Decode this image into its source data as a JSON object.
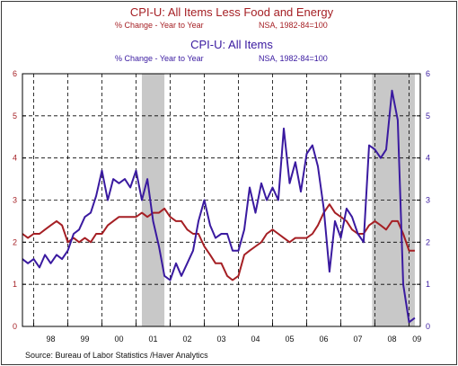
{
  "chart_data": {
    "type": "line",
    "titles": [
      {
        "title": "CPI-U: All Items Less Food and Energy",
        "subtitle_left": "% Change - Year to Year",
        "subtitle_right": "NSA, 1982-84=100",
        "color": "#a51f24"
      },
      {
        "title": "CPI-U: All Items",
        "subtitle_left": "% Change - Year to Year",
        "subtitle_right": "NSA, 1982-84=100",
        "color": "#3a1aa0"
      }
    ],
    "source": "Source:  Bureau of Labor Statistics /Haver Analytics",
    "x_range": [
      1997.67,
      2009.33
    ],
    "x_tick_labels": [
      "98",
      "99",
      "00",
      "01",
      "02",
      "03",
      "04",
      "05",
      "06",
      "07",
      "08",
      "09"
    ],
    "x_tick_years": [
      1998,
      1999,
      2000,
      2001,
      2002,
      2003,
      2004,
      2005,
      2006,
      2007,
      2008,
      2009
    ],
    "y_range": [
      0,
      6
    ],
    "y_ticks_left": [
      "0",
      "1",
      "2",
      "3",
      "4",
      "5",
      "6"
    ],
    "y_ticks_right": [
      "0",
      "1",
      "2",
      "3",
      "4",
      "5",
      "6"
    ],
    "grid": "dashed",
    "recessions": [
      [
        2001.17,
        2001.83
      ],
      [
        2007.92,
        2009.17
      ]
    ],
    "series": [
      {
        "name": "CPI-U: All Items Less Food and Energy",
        "color": "#a51f24",
        "x": [
          1997.67,
          1997.83,
          1998.0,
          1998.17,
          1998.33,
          1998.5,
          1998.67,
          1998.83,
          1999.0,
          1999.17,
          1999.33,
          1999.5,
          1999.67,
          1999.83,
          2000.0,
          2000.17,
          2000.33,
          2000.5,
          2000.67,
          2000.83,
          2001.0,
          2001.17,
          2001.33,
          2001.5,
          2001.67,
          2001.83,
          2002.0,
          2002.17,
          2002.33,
          2002.5,
          2002.67,
          2002.83,
          2003.0,
          2003.17,
          2003.33,
          2003.5,
          2003.67,
          2003.83,
          2004.0,
          2004.17,
          2004.33,
          2004.5,
          2004.67,
          2004.83,
          2005.0,
          2005.17,
          2005.33,
          2005.5,
          2005.67,
          2005.83,
          2006.0,
          2006.17,
          2006.33,
          2006.5,
          2006.67,
          2006.83,
          2007.0,
          2007.17,
          2007.33,
          2007.5,
          2007.67,
          2007.83,
          2008.0,
          2008.17,
          2008.33,
          2008.5,
          2008.67,
          2008.83,
          2009.0,
          2009.17
        ],
        "y": [
          2.2,
          2.1,
          2.2,
          2.2,
          2.3,
          2.4,
          2.5,
          2.4,
          2.0,
          2.1,
          2.0,
          2.1,
          2.0,
          2.2,
          2.2,
          2.4,
          2.5,
          2.6,
          2.6,
          2.6,
          2.6,
          2.7,
          2.6,
          2.7,
          2.7,
          2.8,
          2.6,
          2.5,
          2.5,
          2.3,
          2.2,
          2.2,
          1.9,
          1.7,
          1.5,
          1.5,
          1.2,
          1.1,
          1.2,
          1.7,
          1.8,
          1.9,
          2.0,
          2.2,
          2.3,
          2.2,
          2.1,
          2.0,
          2.1,
          2.1,
          2.1,
          2.2,
          2.4,
          2.7,
          2.9,
          2.7,
          2.6,
          2.5,
          2.3,
          2.2,
          2.2,
          2.4,
          2.5,
          2.4,
          2.3,
          2.5,
          2.5,
          2.2,
          1.8,
          1.8
        ]
      },
      {
        "name": "CPI-U: All Items",
        "color": "#3a1aa0",
        "x": [
          1997.67,
          1997.83,
          1998.0,
          1998.17,
          1998.33,
          1998.5,
          1998.67,
          1998.83,
          1999.0,
          1999.17,
          1999.33,
          1999.5,
          1999.67,
          1999.83,
          2000.0,
          2000.17,
          2000.33,
          2000.5,
          2000.67,
          2000.83,
          2001.0,
          2001.17,
          2001.33,
          2001.5,
          2001.67,
          2001.83,
          2002.0,
          2002.17,
          2002.33,
          2002.5,
          2002.67,
          2002.83,
          2003.0,
          2003.17,
          2003.33,
          2003.5,
          2003.67,
          2003.83,
          2004.0,
          2004.17,
          2004.33,
          2004.5,
          2004.67,
          2004.83,
          2005.0,
          2005.17,
          2005.33,
          2005.5,
          2005.67,
          2005.83,
          2006.0,
          2006.17,
          2006.33,
          2006.5,
          2006.67,
          2006.83,
          2007.0,
          2007.17,
          2007.33,
          2007.5,
          2007.67,
          2007.83,
          2008.0,
          2008.17,
          2008.33,
          2008.5,
          2008.67,
          2008.83,
          2009.0,
          2009.17
        ],
        "y": [
          1.6,
          1.5,
          1.6,
          1.4,
          1.7,
          1.5,
          1.7,
          1.6,
          1.8,
          2.2,
          2.3,
          2.6,
          2.7,
          3.1,
          3.7,
          3.0,
          3.5,
          3.4,
          3.5,
          3.3,
          3.7,
          3.0,
          3.5,
          2.5,
          1.9,
          1.2,
          1.1,
          1.5,
          1.2,
          1.5,
          1.8,
          2.5,
          3.0,
          2.4,
          2.1,
          2.2,
          2.2,
          1.8,
          1.8,
          2.3,
          3.3,
          2.7,
          3.4,
          3.0,
          3.3,
          3.0,
          4.7,
          3.4,
          3.9,
          3.2,
          4.1,
          4.3,
          3.8,
          2.8,
          1.3,
          2.5,
          2.1,
          2.8,
          2.6,
          2.2,
          2.0,
          4.3,
          4.2,
          4.0,
          4.2,
          5.6,
          4.9,
          1.0,
          0.1,
          0.2
        ]
      }
    ]
  }
}
